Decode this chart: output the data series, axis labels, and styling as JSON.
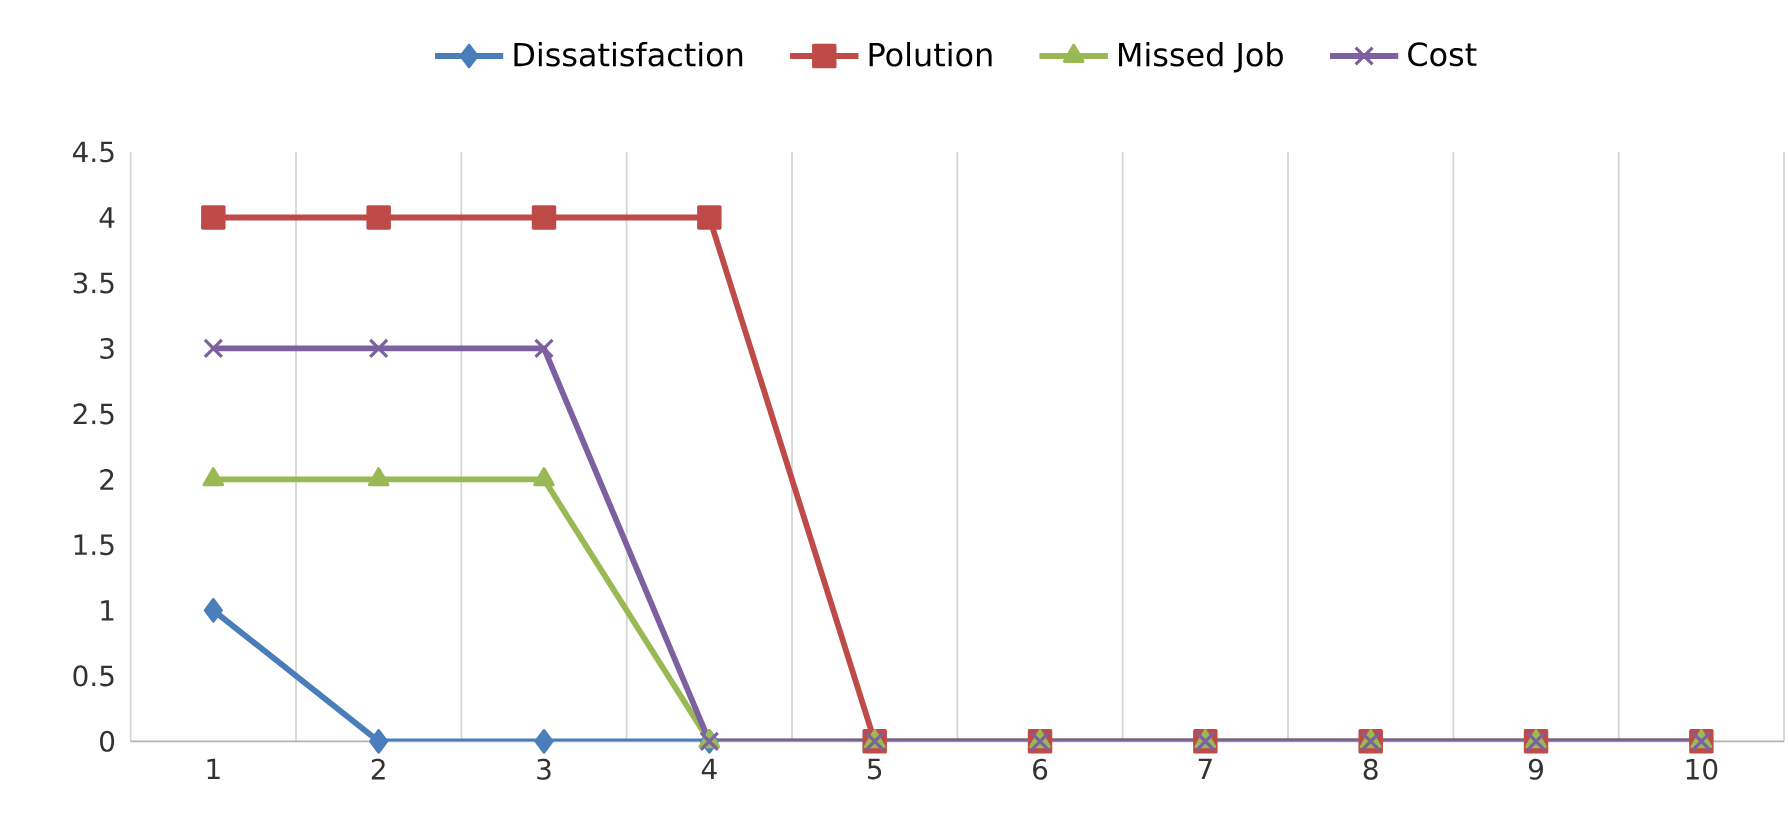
{
  "chart_data": {
    "type": "line",
    "categories": [
      "1",
      "2",
      "3",
      "4",
      "5",
      "6",
      "7",
      "8",
      "9",
      "10"
    ],
    "series": [
      {
        "name": "Dissatisfaction",
        "color": "#4a7ebb",
        "marker": "diamond",
        "values": [
          1,
          0,
          0,
          0,
          null,
          null,
          null,
          null,
          null,
          null
        ]
      },
      {
        "name": "Polution",
        "color": "#be4b48",
        "marker": "square",
        "values": [
          4,
          4,
          4,
          4,
          0,
          0,
          0,
          0,
          0,
          0
        ]
      },
      {
        "name": "Missed Job",
        "color": "#98b954",
        "marker": "triangle",
        "values": [
          2,
          2,
          2,
          0,
          0,
          0,
          0,
          0,
          0,
          0
        ]
      },
      {
        "name": "Cost",
        "color": "#7d60a0",
        "marker": "cross",
        "values": [
          3,
          3,
          3,
          0,
          0,
          0,
          0,
          0,
          0,
          0
        ]
      }
    ],
    "ylim": [
      0,
      4.5
    ],
    "yticks": [
      0,
      0.5,
      1,
      1.5,
      2,
      2.5,
      3,
      3.5,
      4,
      4.5
    ],
    "grid": "x",
    "legend": "top",
    "line_style": "solid"
  }
}
